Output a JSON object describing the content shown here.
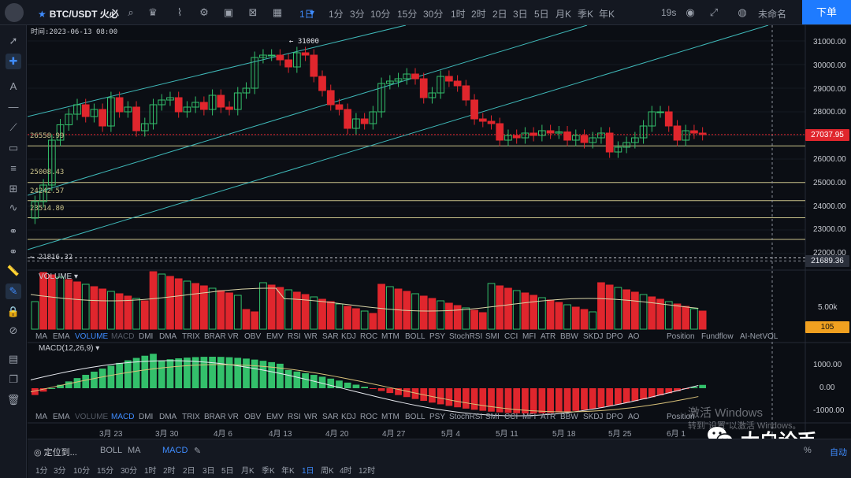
{
  "topbar": {
    "symbol": "BTC/USDT",
    "exchange": "火必",
    "timeframes": [
      "1日",
      "1分",
      "3分",
      "10分",
      "15分",
      "30分",
      "1时",
      "2时",
      "2日",
      "3日",
      "5日",
      "月K",
      "季K",
      "年K"
    ],
    "active_timeframe": "1日",
    "countdown": "19s",
    "account": "未命名",
    "order_button": "下单"
  },
  "chart": {
    "datetime": "时间:2023-06-13 08:00",
    "high_marker": "31000",
    "low_marker": "21816.32",
    "hline_labels": [
      "26558.99",
      "25008.43",
      "24242.57",
      "23514.80"
    ],
    "price_axis": [
      "31000.00",
      "30000.00",
      "29000.00",
      "28000.00",
      "27000.00",
      "26000.00",
      "25000.00",
      "24000.00",
      "23000.00",
      "22000.00"
    ],
    "current_price": "27037.95",
    "crosshair_price": "21689.36",
    "x_labels": [
      "3月 23",
      "3月 30",
      "4月 6",
      "4月 13",
      "4月 20",
      "4月 27",
      "5月 4",
      "5月 11",
      "5月 18",
      "5月 25",
      "6月 1"
    ]
  },
  "volume": {
    "title": "VOLUME",
    "axis": "5.00k",
    "current": "105"
  },
  "macd": {
    "title": "MACD(12,26,9)",
    "axis": [
      "1000.00",
      "0.00",
      "-1000.00"
    ]
  },
  "indicator_tabs": [
    "MA",
    "EMA",
    "VOLUME",
    "MACD",
    "DMI",
    "DMA",
    "TRIX",
    "BRAR",
    "VR",
    "OBV",
    "EMV",
    "RSI",
    "WR",
    "SAR",
    "KDJ",
    "ROC",
    "MTM",
    "BOLL",
    "PSY",
    "StochRSI",
    "SMI",
    "CCI",
    "MFI",
    "ATR",
    "BBW",
    "SKDJ",
    "DPO",
    "AO",
    "Position",
    "Fundflow",
    "AI-NetVOL"
  ],
  "bottombar": {
    "locate": "定位到...",
    "overlays": [
      "BOLL",
      "MA"
    ],
    "active_overlay": "MACD",
    "timeframes": [
      "1分",
      "3分",
      "10分",
      "15分",
      "30分",
      "1时",
      "2时",
      "2日",
      "3日",
      "5日",
      "月K",
      "季K",
      "年K",
      "1日",
      "周K",
      "4时",
      "12时"
    ],
    "active_timeframe": "1日",
    "auto_label": "自动",
    "percent_label": "%"
  },
  "watermark": {
    "line1": "激活 Windows",
    "line2": "转到\"设置\"以激活 Windows。"
  },
  "brand": "大白论币",
  "colors": {
    "up": "#33c06b",
    "down": "#e0262d",
    "accent": "#3f8cff",
    "channel": "#3fb9b9",
    "hline": "#c9c28a"
  }
}
